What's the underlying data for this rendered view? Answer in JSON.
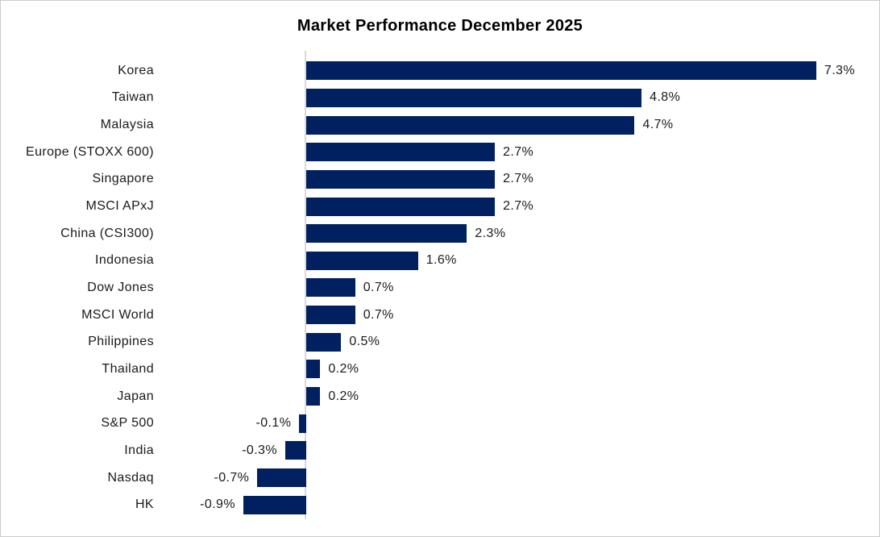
{
  "chart_data": {
    "type": "bar",
    "orientation": "horizontal",
    "title": "Market Performance December 2025",
    "categories": [
      "Korea",
      "Taiwan",
      "Malaysia",
      "Europe (STOXX 600)",
      "Singapore",
      "MSCI APxJ",
      "China (CSI300)",
      "Indonesia",
      "Dow Jones",
      "MSCI World",
      "Philippines",
      "Thailand",
      "Japan",
      "S&P 500",
      "India",
      "Nasdaq",
      "HK"
    ],
    "values": [
      7.3,
      4.8,
      4.7,
      2.7,
      2.7,
      2.7,
      2.3,
      1.6,
      0.7,
      0.7,
      0.5,
      0.2,
      0.2,
      -0.1,
      -0.3,
      -0.7,
      -0.9
    ],
    "value_labels": [
      "7.3%",
      "4.8%",
      "4.7%",
      "2.7%",
      "2.7%",
      "2.7%",
      "2.3%",
      "1.6%",
      "0.7%",
      "0.7%",
      "0.5%",
      "0.2%",
      "0.2%",
      "-0.1%",
      "-0.3%",
      "-0.7%",
      "-0.9%"
    ],
    "xlim": [
      -1.0,
      8.0
    ],
    "grid": false,
    "legend": false,
    "bar_color": "#002060",
    "axis_line_color": "#d9d9d9",
    "label_color": "#1a1a1a",
    "title_color": "#000000"
  }
}
